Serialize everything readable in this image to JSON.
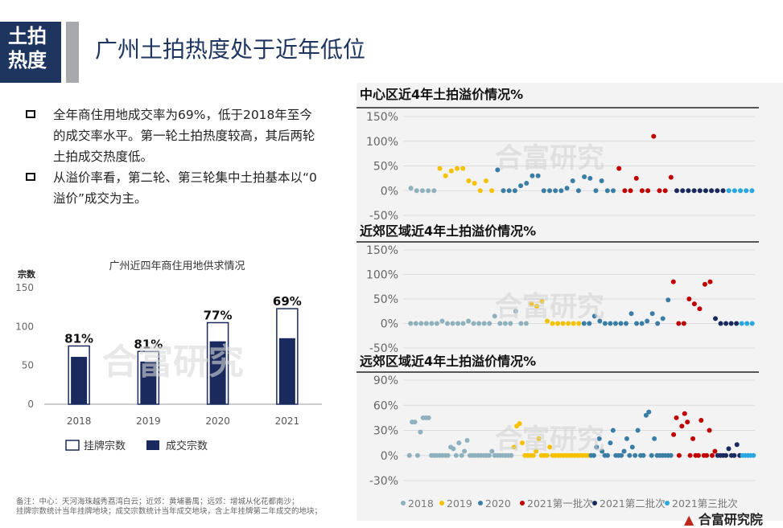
{
  "header": {
    "tag": "土拍热度",
    "title": "广州土拍热度处于近年低位"
  },
  "bullets": [
    "全年商住用地成交率为69%，低于2018年至今的成交率水平。第一轮土拍热度较高，其后两轮土拍成交热度低。",
    "从溢价率看，第二轮、第三轮集中土拍基本以“0溢价”成交为主。"
  ],
  "watermark": "合富研究",
  "footnote": {
    "line1": "备注：中心：天河海珠越秀荔湾白云；近郊：黄埔番禺；远郊：增城从化花都南沙；",
    "line2": "挂牌宗数统计当年挂牌地块；成交宗数统计当年成交地块，含上年挂牌第二年成交的地块；"
  },
  "logo": {
    "mark": "▲",
    "text": "合富研究院"
  },
  "chart_data": [
    {
      "type": "bar",
      "title": "广州近四年商住用地供求情况",
      "ylabel": "宗数",
      "ylim": [
        0,
        150
      ],
      "yticks": [
        "150",
        "100",
        "50",
        "0"
      ],
      "categories": [
        "2018",
        "2019",
        "2020",
        "2021"
      ],
      "series": [
        {
          "name": "挂牌宗数",
          "values": [
            75,
            68,
            105,
            123
          ]
        },
        {
          "name": "成交宗数",
          "values": [
            61,
            55,
            81,
            85
          ]
        }
      ],
      "rate_labels": [
        "81%",
        "81%",
        "77%",
        "69%"
      ],
      "colors": {
        "listed": "#ffffff",
        "sold": "#1b2a5e",
        "border": "#1b2a5e"
      }
    },
    {
      "type": "scatter",
      "title": "中心区近4年土拍溢价情况%",
      "yticks": [
        "150%",
        "100%",
        "50%",
        "0%",
        "-50%"
      ],
      "ylim": [
        -50,
        150
      ],
      "series": [
        {
          "name": "2018",
          "color": "#8fb0bd",
          "values": [
            5,
            0,
            0,
            0,
            0
          ]
        },
        {
          "name": "2019",
          "color": "#f5c100",
          "values": [
            45,
            30,
            40,
            45,
            45,
            20,
            15,
            0,
            20,
            0
          ]
        },
        {
          "name": "2020",
          "color": "#3a7ea5",
          "values": [
            42,
            0,
            0,
            0,
            10,
            15,
            30,
            30,
            0,
            0,
            0,
            0,
            5,
            20,
            0,
            28,
            25,
            0,
            20,
            0,
            0
          ]
        },
        {
          "name": "2021第一批次",
          "color": "#c00000",
          "values": [
            45,
            0,
            0,
            25,
            0,
            0,
            110,
            0,
            0,
            27
          ]
        },
        {
          "name": "2021第二批次",
          "color": "#1b2a5e",
          "values": [
            0,
            0,
            0,
            0,
            0,
            0,
            0,
            0,
            0
          ]
        },
        {
          "name": "2021第三批次",
          "color": "#29a8e0",
          "values": [
            0,
            0,
            0,
            0,
            0
          ]
        }
      ]
    },
    {
      "type": "scatter",
      "title": "近郊区域近4年土拍溢价情况%",
      "yticks": [
        "150%",
        "100%",
        "50%",
        "0%",
        "-50%"
      ],
      "ylim": [
        -50,
        150
      ],
      "series": [
        {
          "name": "2018",
          "color": "#8fb0bd",
          "values": [
            0,
            0,
            0,
            0,
            0,
            0,
            5,
            0,
            0,
            0,
            0,
            5,
            0,
            0,
            0,
            0,
            15,
            0,
            0,
            0,
            25,
            0,
            0
          ]
        },
        {
          "name": "2019",
          "color": "#f5c100",
          "values": [
            40,
            35,
            45,
            5,
            0,
            0,
            0,
            0,
            0,
            0
          ]
        },
        {
          "name": "2020",
          "color": "#3a7ea5",
          "values": [
            0,
            0,
            15,
            5,
            0,
            0,
            0,
            0,
            0,
            20,
            0,
            0,
            5,
            20,
            0,
            10,
            48
          ]
        },
        {
          "name": "2021第一批次",
          "color": "#c00000",
          "values": [
            85,
            0,
            0,
            50,
            40,
            30,
            80,
            85
          ]
        },
        {
          "name": "2021第二批次",
          "color": "#1b2a5e",
          "values": [
            10,
            0,
            0,
            0,
            0
          ]
        },
        {
          "name": "2021第三批次",
          "color": "#29a8e0",
          "values": [
            0,
            0,
            0
          ]
        }
      ]
    },
    {
      "type": "scatter",
      "title": "远郊区域近4年土拍溢价情况%",
      "yticks": [
        "90%",
        "60%",
        "30%",
        "0%",
        "-30%"
      ],
      "ylim": [
        -30,
        90
      ],
      "series": [
        {
          "name": "2018",
          "color": "#8fb0bd",
          "values": [
            0,
            40,
            40,
            0,
            28,
            45,
            45,
            45,
            0,
            0,
            0,
            0,
            0,
            0,
            0,
            10,
            8,
            0,
            15,
            0,
            5,
            18,
            0,
            0,
            0,
            0,
            0,
            0,
            0,
            0,
            5,
            0,
            0,
            0,
            0,
            0,
            0,
            0
          ]
        },
        {
          "name": "2019",
          "color": "#f5c100",
          "values": [
            10,
            35,
            38,
            15,
            0,
            0,
            0,
            0,
            5,
            20,
            0,
            0,
            0,
            10,
            0,
            0,
            0,
            0,
            0,
            0,
            0,
            0,
            0,
            0,
            0,
            0,
            0,
            0
          ]
        },
        {
          "name": "2020",
          "color": "#3a7ea5",
          "values": [
            0,
            0,
            10,
            20,
            5,
            0,
            0,
            15,
            30,
            0,
            0,
            0,
            5,
            20,
            0,
            10,
            0,
            30,
            0,
            0,
            48,
            52,
            0,
            20,
            0,
            0,
            0,
            0,
            0,
            0
          ]
        },
        {
          "name": "2021第一批次",
          "color": "#c00000",
          "values": [
            25,
            45,
            0,
            35,
            50,
            40,
            0,
            20,
            0,
            0,
            42,
            0,
            0,
            30,
            0,
            5
          ]
        },
        {
          "name": "2021第二批次",
          "color": "#1b2a5e",
          "values": [
            0,
            0,
            0,
            0,
            8,
            0,
            0,
            13,
            0
          ]
        },
        {
          "name": "2021第三批次",
          "color": "#29a8e0",
          "values": [
            0,
            0,
            0,
            0,
            0
          ]
        }
      ]
    }
  ],
  "legend_scatter": [
    "2018",
    "2019",
    "2020",
    "2021第一批次",
    "2021第二批次",
    "2021第三批次"
  ]
}
